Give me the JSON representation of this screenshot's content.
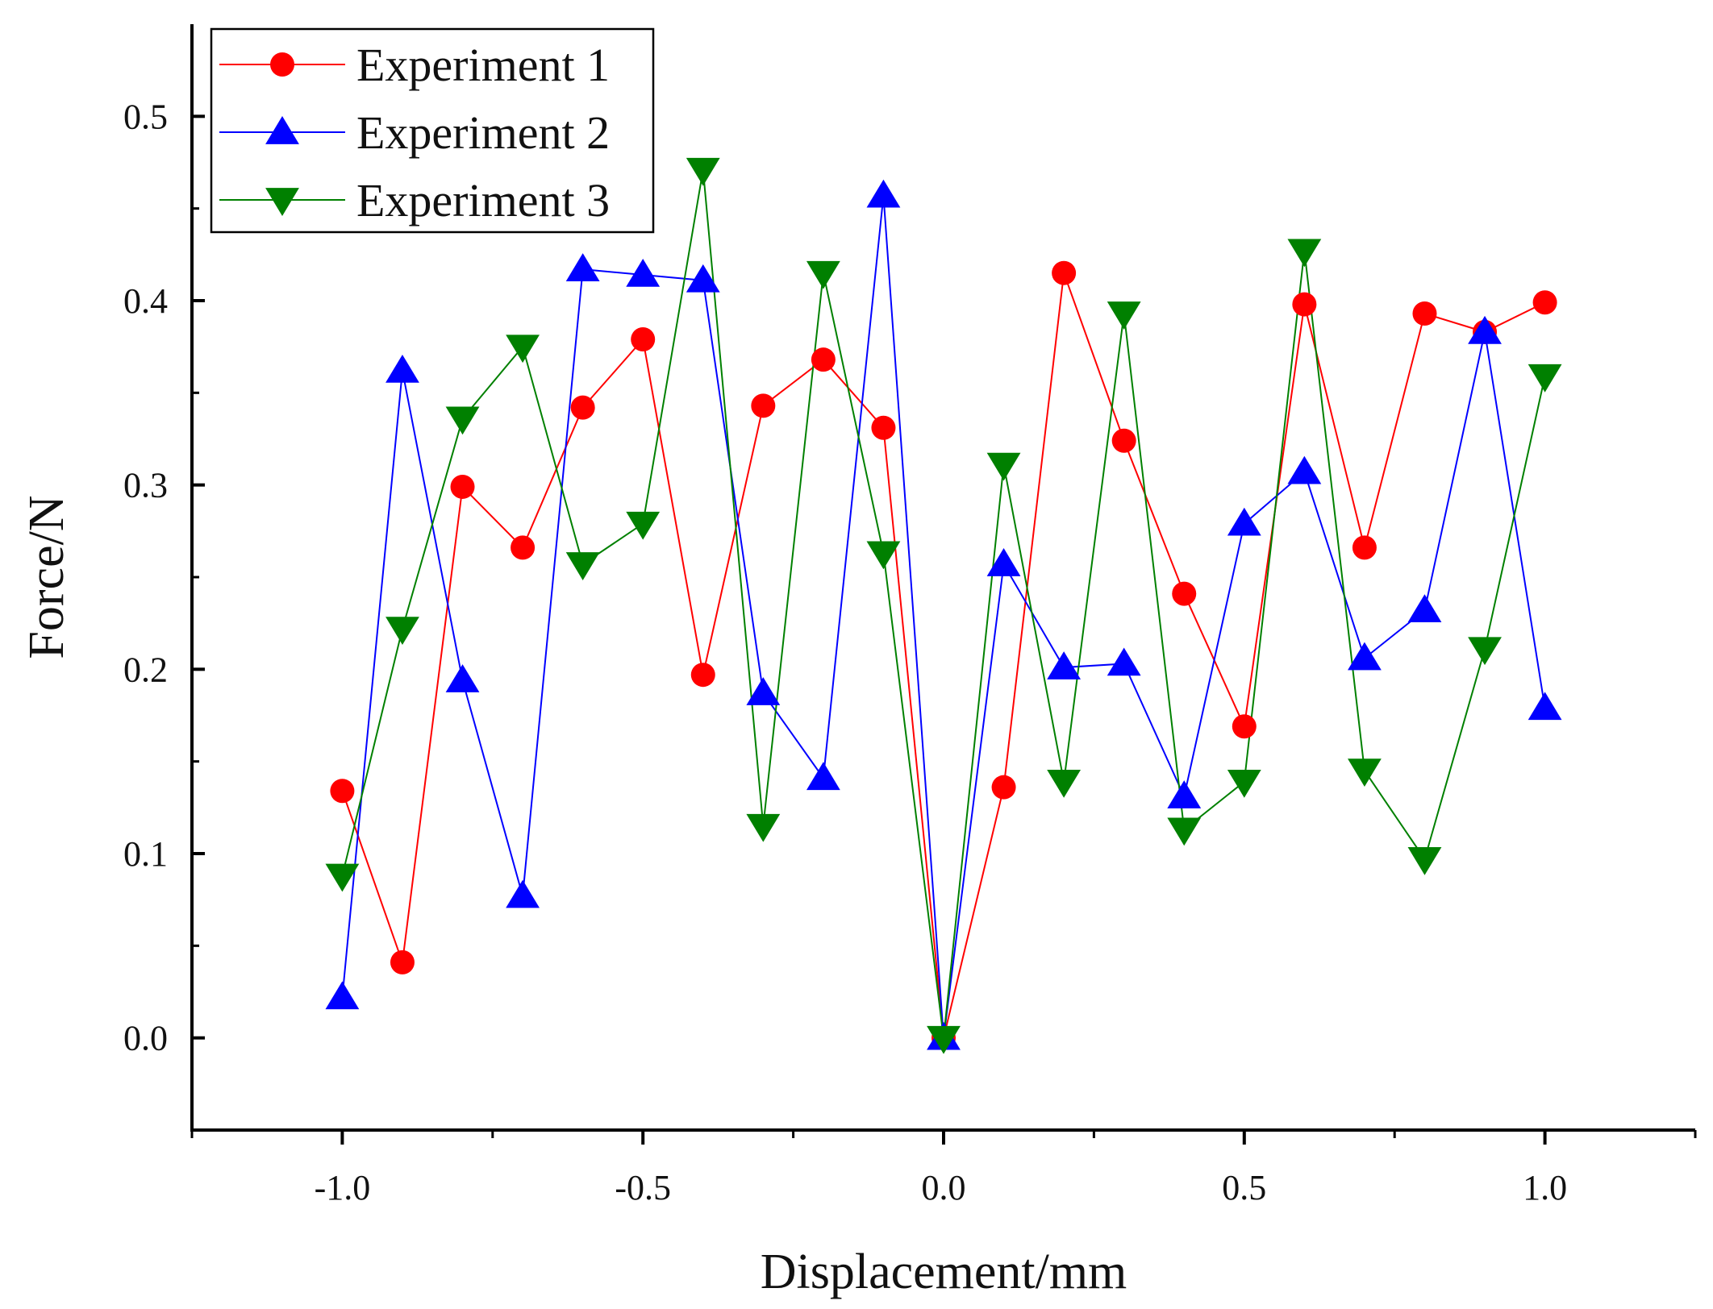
{
  "chart_data": {
    "type": "line",
    "xlabel": "Displacement/mm",
    "ylabel": "Force/N",
    "xlim": [
      -1.25,
      1.25
    ],
    "ylim": [
      -0.05,
      0.55
    ],
    "x_ticks": [
      "-1.0",
      "-0.5",
      "0.0",
      "0.5",
      "1.0"
    ],
    "y_ticks": [
      "0.0",
      "0.1",
      "0.2",
      "0.3",
      "0.4",
      "0.5"
    ],
    "grid": false,
    "legend_position": "top-left",
    "x": [
      -1.0,
      -0.9,
      -0.8,
      -0.7,
      -0.6,
      -0.5,
      -0.4,
      -0.3,
      -0.2,
      -0.1,
      0.0,
      0.1,
      0.2,
      0.3,
      0.4,
      0.5,
      0.6,
      0.7,
      0.8,
      0.9,
      1.0
    ],
    "series": [
      {
        "name": "Experiment 1",
        "color": "#ff0000",
        "marker": "circle",
        "values": [
          0.134,
          0.041,
          0.299,
          0.266,
          0.342,
          0.379,
          0.197,
          0.343,
          0.368,
          0.331,
          0.0,
          0.136,
          0.415,
          0.324,
          0.241,
          0.169,
          0.398,
          0.266,
          0.393,
          0.383,
          0.399
        ]
      },
      {
        "name": "Experiment 2",
        "color": "#0000ff",
        "marker": "triangle-up",
        "values": [
          0.022,
          0.362,
          0.194,
          0.077,
          0.417,
          0.414,
          0.411,
          0.187,
          0.141,
          0.457,
          0.0,
          0.257,
          0.201,
          0.203,
          0.131,
          0.279,
          0.307,
          0.206,
          0.232,
          0.383,
          0.179
        ]
      },
      {
        "name": "Experiment 3",
        "color": "#008000",
        "marker": "triangle-down",
        "values": [
          0.088,
          0.222,
          0.336,
          0.375,
          0.257,
          0.279,
          0.471,
          0.115,
          0.415,
          0.263,
          0.0,
          0.311,
          0.139,
          0.393,
          0.113,
          0.139,
          0.427,
          0.145,
          0.097,
          0.211,
          0.359
        ]
      }
    ]
  }
}
